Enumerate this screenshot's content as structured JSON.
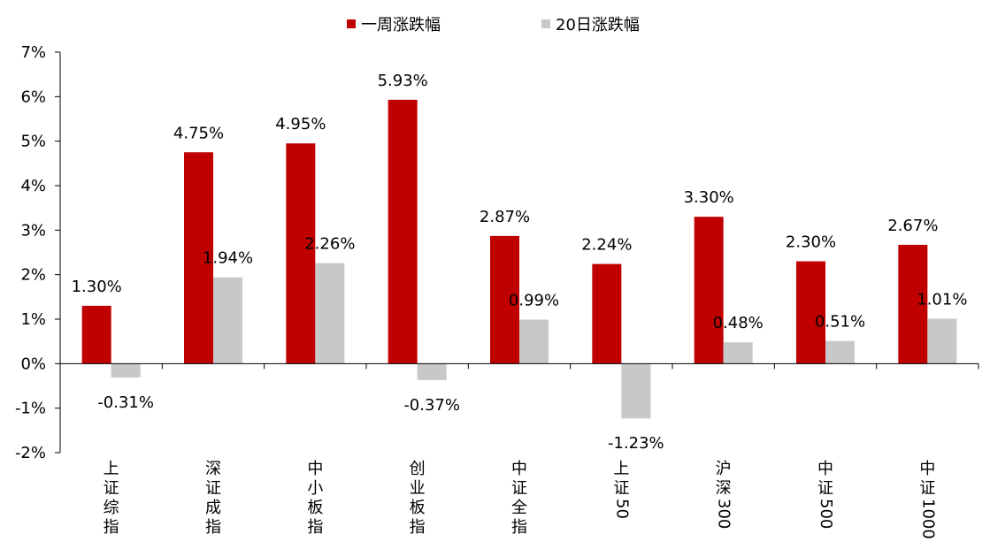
{
  "colors": {
    "weekly": "#c00000",
    "twenty_day": "#c8c8c8",
    "axis": "#000000"
  },
  "chart_data": {
    "type": "bar",
    "title": "",
    "xlabel": "",
    "ylabel": "",
    "ylim": [
      -2,
      7
    ],
    "yticks": [
      -2,
      -1,
      0,
      1,
      2,
      3,
      4,
      5,
      6,
      7
    ],
    "ytick_labels": [
      "-2%",
      "-1%",
      "0%",
      "1%",
      "2%",
      "3%",
      "4%",
      "5%",
      "6%",
      "7%"
    ],
    "grid": false,
    "legend": "top-center",
    "categories": [
      "上证综指",
      "深证成指",
      "中小板指",
      "创业板指",
      "中证全指",
      "上证50",
      "沪深300",
      "中证500",
      "中证1000"
    ],
    "series": [
      {
        "name": "一周涨跌幅",
        "values": [
          1.3,
          4.75,
          4.95,
          5.93,
          2.87,
          2.24,
          3.3,
          2.3,
          2.67
        ],
        "labels": [
          "1.30%",
          "4.75%",
          "4.95%",
          "5.93%",
          "2.87%",
          "2.24%",
          "3.30%",
          "2.30%",
          "2.67%"
        ]
      },
      {
        "name": "20日涨跌幅",
        "values": [
          -0.31,
          1.94,
          2.26,
          -0.37,
          0.99,
          -1.23,
          0.48,
          0.51,
          1.01
        ],
        "labels": [
          "-0.31%",
          "1.94%",
          "2.26%",
          "-0.37%",
          "0.99%",
          "-1.23%",
          "0.48%",
          "0.51%",
          "1.01%"
        ]
      }
    ]
  }
}
